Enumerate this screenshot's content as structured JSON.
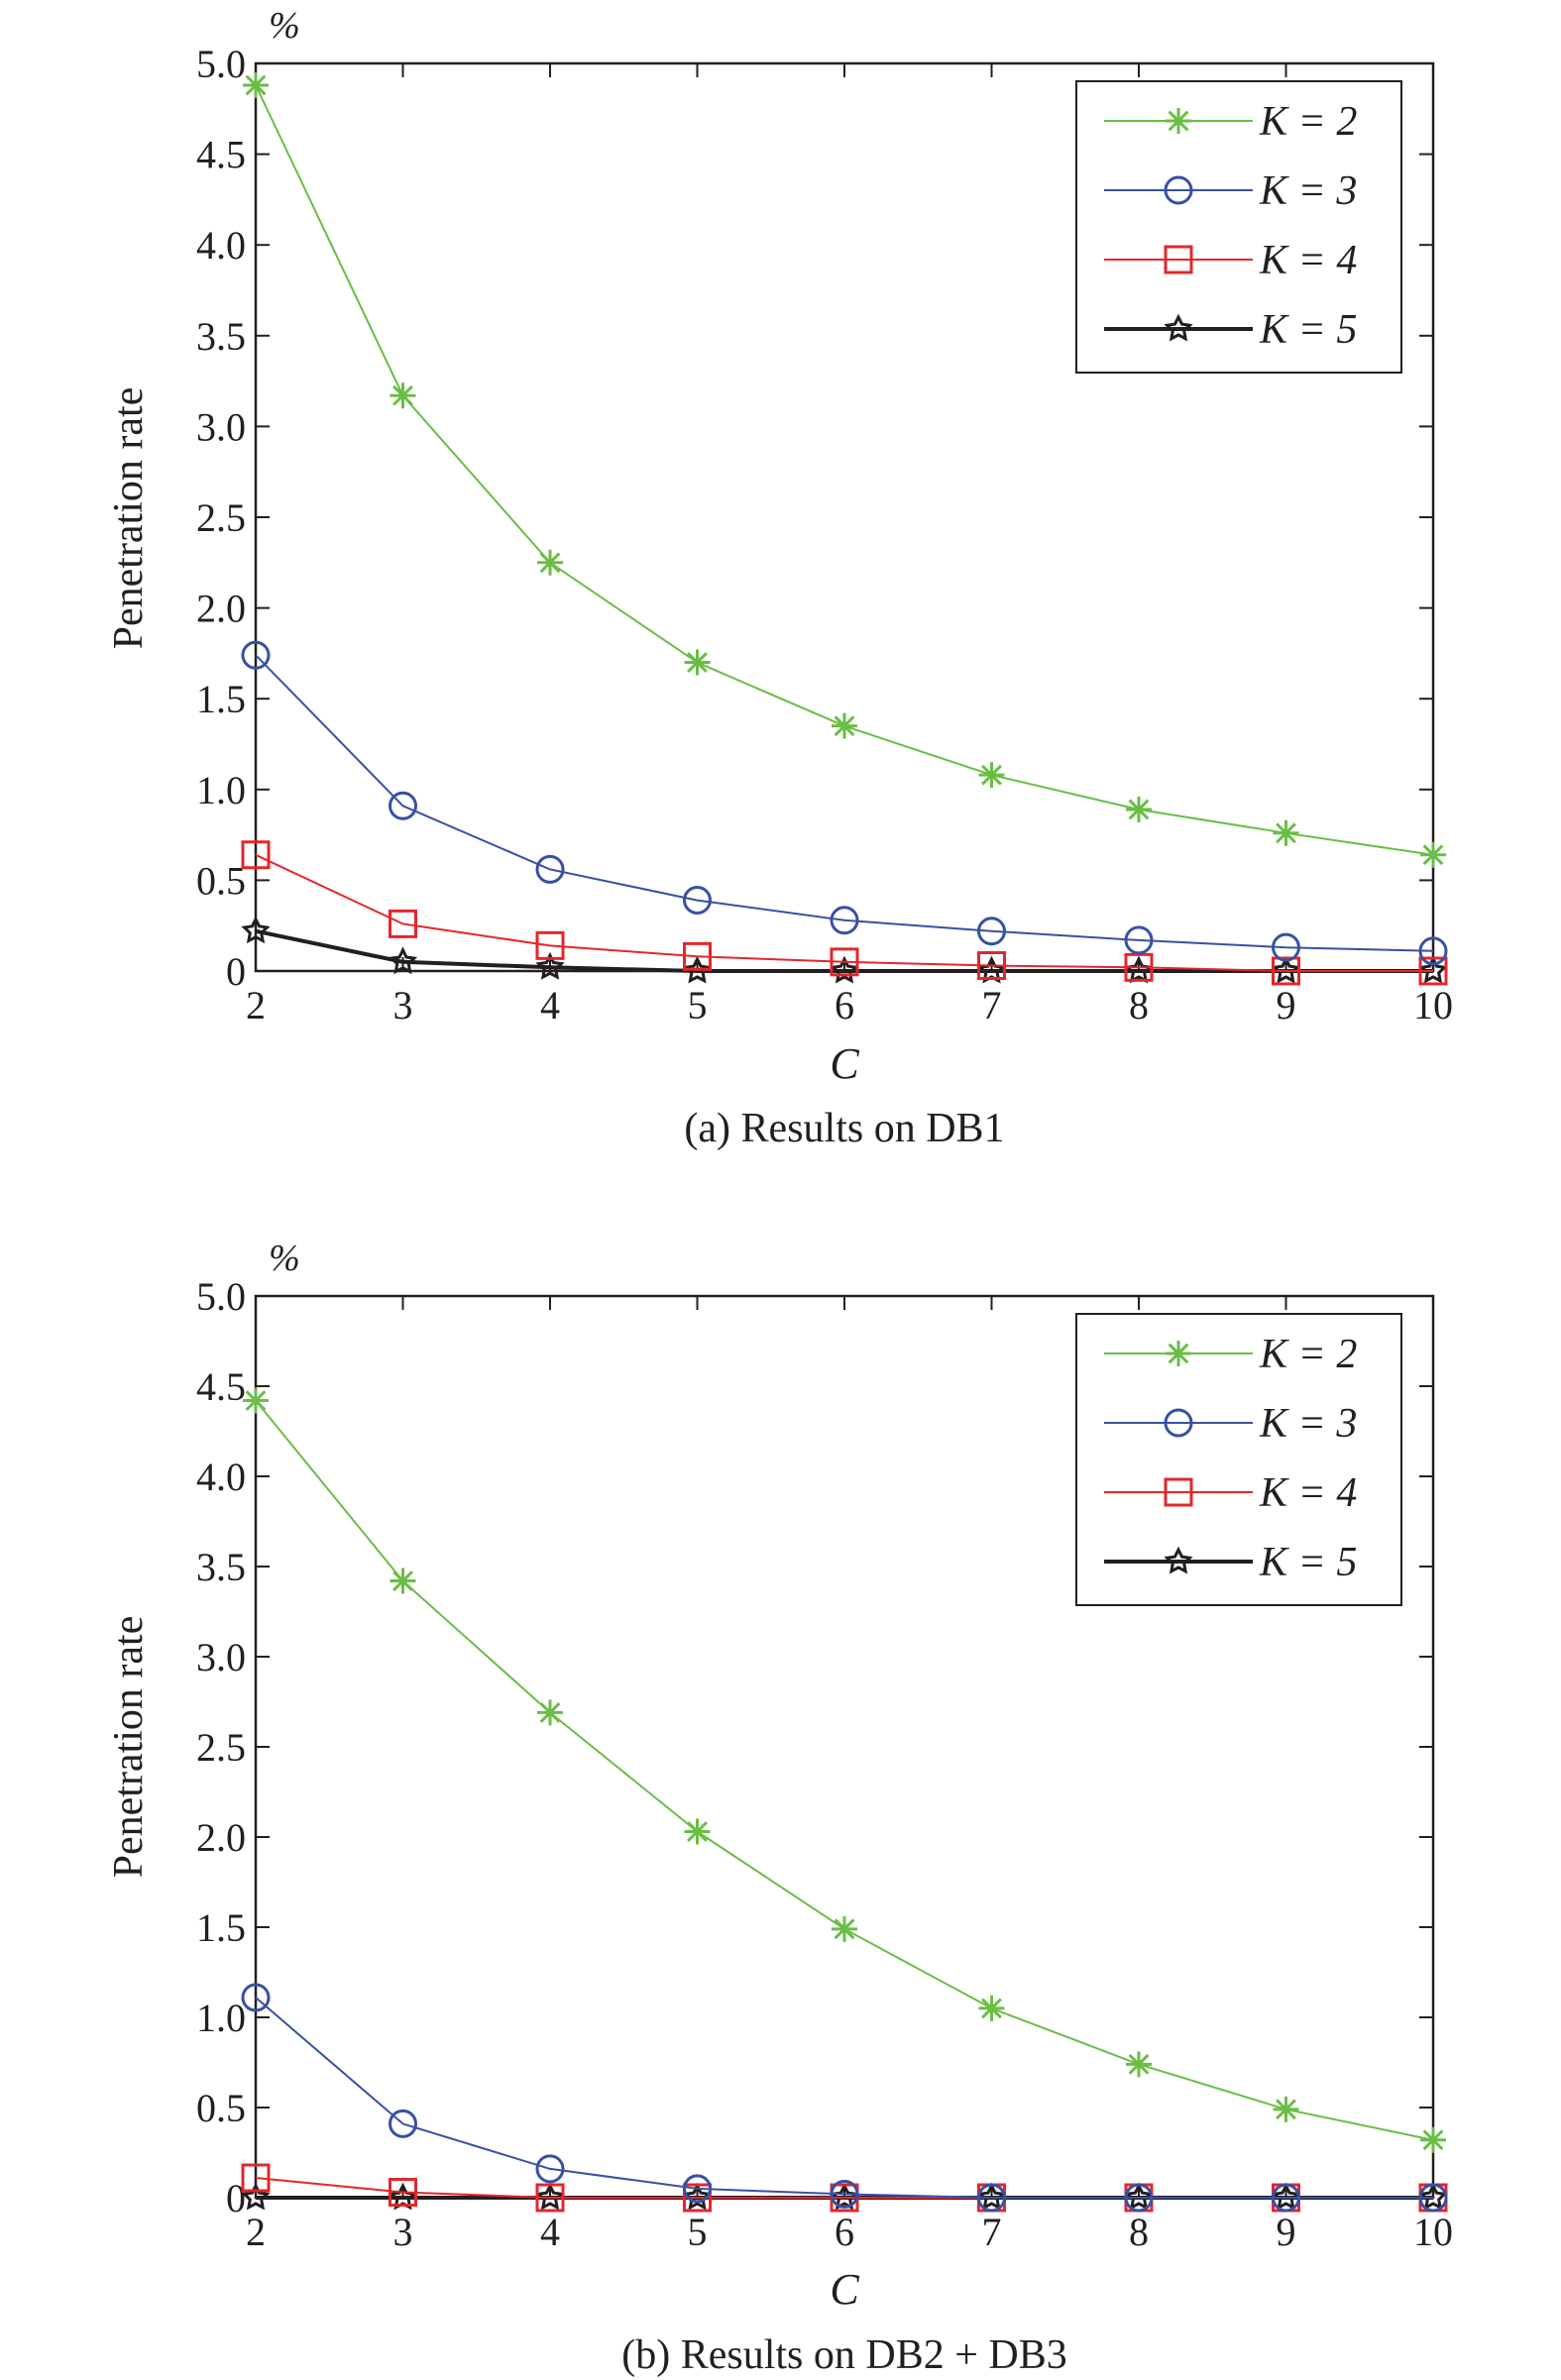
{
  "chart_data": [
    {
      "type": "line",
      "caption": "(a) Results on DB1",
      "xlabel": "C",
      "ylabel": "Penetration rate",
      "yunit": "%",
      "x": [
        2,
        3,
        4,
        5,
        6,
        7,
        8,
        9,
        10
      ],
      "xticks": [
        "2",
        "3",
        "4",
        "5",
        "6",
        "7",
        "8",
        "9",
        "10"
      ],
      "yticks": [
        "0",
        "0.5",
        "1.0",
        "1.5",
        "2.0",
        "2.5",
        "3.0",
        "3.5",
        "4.0",
        "4.5",
        "5.0"
      ],
      "xlim": [
        2,
        10
      ],
      "ylim": [
        0,
        5
      ],
      "grid": false,
      "legend_position": "top-right",
      "series": [
        {
          "name": "K = 2",
          "color": "#6abd45",
          "marker": "asterisk",
          "values": [
            4.88,
            3.17,
            2.25,
            1.7,
            1.35,
            1.08,
            0.89,
            0.76,
            0.64
          ]
        },
        {
          "name": "K = 3",
          "color": "#3850a5",
          "marker": "circle",
          "values": [
            1.74,
            0.91,
            0.56,
            0.39,
            0.28,
            0.22,
            0.17,
            0.13,
            0.11
          ]
        },
        {
          "name": "K = 4",
          "color": "#e5262b",
          "marker": "square",
          "values": [
            0.64,
            0.26,
            0.14,
            0.08,
            0.05,
            0.03,
            0.02,
            0.0,
            0.0
          ]
        },
        {
          "name": "K = 5",
          "color": "#231f20",
          "marker": "star",
          "values": [
            0.22,
            0.05,
            0.02,
            0.0,
            0.0,
            0.0,
            0.0,
            0.0,
            0.0
          ]
        }
      ]
    },
    {
      "type": "line",
      "caption": "(b) Results on DB2 + DB3",
      "xlabel": "C",
      "ylabel": "Penetration rate",
      "yunit": "%",
      "x": [
        2,
        3,
        4,
        5,
        6,
        7,
        8,
        9,
        10
      ],
      "xticks": [
        "2",
        "3",
        "4",
        "5",
        "6",
        "7",
        "8",
        "9",
        "10"
      ],
      "yticks": [
        "0",
        "0.5",
        "1.0",
        "1.5",
        "2.0",
        "2.5",
        "3.0",
        "3.5",
        "4.0",
        "4.5",
        "5.0"
      ],
      "xlim": [
        2,
        10
      ],
      "ylim": [
        0,
        5
      ],
      "grid": false,
      "legend_position": "top-right",
      "series": [
        {
          "name": "K = 2",
          "color": "#6abd45",
          "marker": "asterisk",
          "values": [
            4.42,
            3.42,
            2.69,
            2.03,
            1.49,
            1.05,
            0.74,
            0.49,
            0.32
          ]
        },
        {
          "name": "K = 3",
          "color": "#3850a5",
          "marker": "circle",
          "values": [
            1.11,
            0.41,
            0.16,
            0.05,
            0.02,
            0.0,
            0.0,
            0.0,
            0.0
          ]
        },
        {
          "name": "K = 4",
          "color": "#e5262b",
          "marker": "square",
          "values": [
            0.11,
            0.03,
            0.0,
            0.0,
            0.0,
            0.0,
            0.0,
            0.0,
            0.0
          ]
        },
        {
          "name": "K = 5",
          "color": "#231f20",
          "marker": "star",
          "values": [
            0.0,
            0.0,
            0.0,
            0.0,
            0.0,
            0.0,
            0.0,
            0.0,
            0.0
          ]
        }
      ]
    }
  ]
}
